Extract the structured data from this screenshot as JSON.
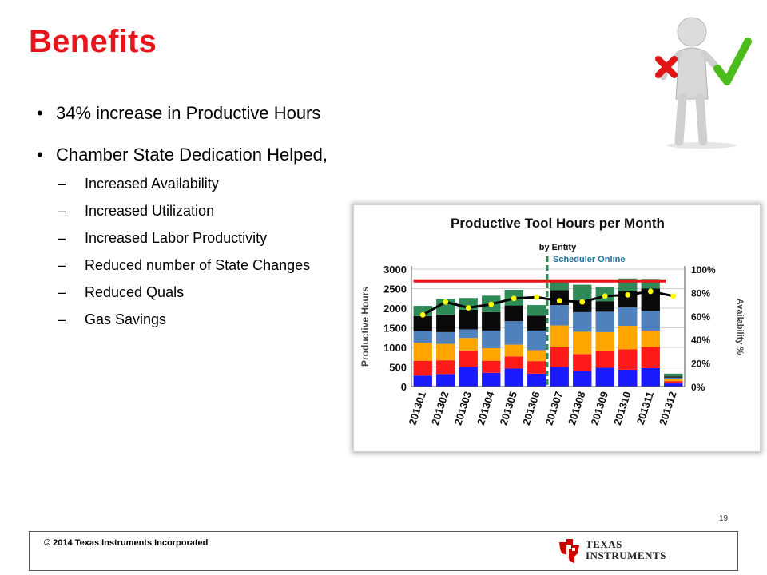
{
  "slide": {
    "title": "Benefits",
    "page_number": "19",
    "copyright": "© 2014 Texas Instruments Incorporated",
    "logo_line1": "TEXAS",
    "logo_line2": "INSTRUMENTS"
  },
  "bullets": [
    {
      "text": "34% increase in Productive Hours"
    },
    {
      "text": "Chamber State Dedication Helped,"
    }
  ],
  "sub_bullets": [
    "Increased Availability",
    "Increased Utilization",
    "Increased Labor Productivity",
    "Reduced number of State Changes",
    "Reduced Quals",
    "Gas Savings"
  ],
  "glyphs": {
    "bullet": "•",
    "dash": "–"
  },
  "icons": {
    "figure": "person-checkmark-icon",
    "logo": "texas-instruments-logo-icon"
  },
  "chart_data": {
    "type": "bar",
    "title": "Productive Tool Hours per Month",
    "subtitle": "by Entity",
    "annotation": "Scheduler Online",
    "ylabel": "Productive Hours",
    "y2label": "Availability %",
    "ylim": [
      0,
      3000
    ],
    "y2lim": [
      0,
      100
    ],
    "yticks": [
      "0",
      "500",
      "1000",
      "1500",
      "2000",
      "2500",
      "3000"
    ],
    "y2ticks": [
      "0%",
      "20%",
      "40%",
      "60%",
      "80%",
      "100%"
    ],
    "categories": [
      "201301",
      "201302",
      "201303",
      "201304",
      "201305",
      "201306",
      "201307",
      "201308",
      "201309",
      "201310",
      "201311",
      "201312"
    ],
    "series": [
      {
        "color": "#1a1aff",
        "values": [
          280,
          320,
          500,
          350,
          460,
          330,
          500,
          400,
          480,
          430,
          470,
          80
        ]
      },
      {
        "color": "#ff1a1a",
        "values": [
          380,
          350,
          420,
          310,
          310,
          320,
          500,
          430,
          420,
          520,
          540,
          60
        ]
      },
      {
        "color": "#ffa500",
        "values": [
          460,
          420,
          320,
          320,
          300,
          280,
          560,
          570,
          490,
          600,
          420,
          50
        ]
      },
      {
        "color": "#4f81bd",
        "values": [
          300,
          300,
          220,
          450,
          600,
          500,
          520,
          500,
          520,
          470,
          500,
          40
        ]
      },
      {
        "color": "#0a0a0a",
        "values": [
          380,
          450,
          500,
          470,
          400,
          380,
          380,
          300,
          270,
          420,
          570,
          30
        ]
      },
      {
        "color": "#2e8b57",
        "values": [
          260,
          400,
          300,
          420,
          400,
          270,
          260,
          400,
          350,
          320,
          250,
          70
        ]
      }
    ],
    "availability_values": [
      61,
      72,
      67,
      70,
      75,
      76,
      73,
      72,
      77,
      78,
      81,
      77
    ],
    "target_value": 90,
    "colors": {
      "target_line": "#e8141b",
      "availability_marker": "#ffff00",
      "availability_line": "#000000",
      "annotation_line": "#2e8b57",
      "annotation_text": "#1f6f9a"
    }
  }
}
